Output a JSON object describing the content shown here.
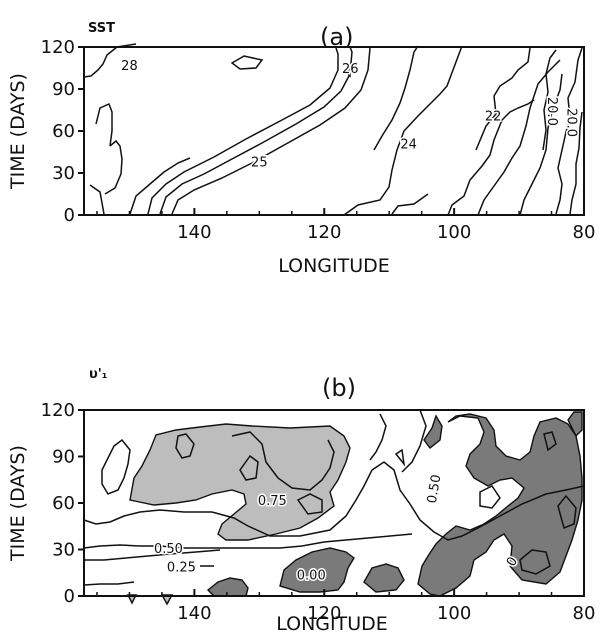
{
  "chart_data": [
    {
      "type": "contour",
      "panel_label": "(a)",
      "variable_label": "SST",
      "xlabel": "LONGITUDE",
      "ylabel": "TIME (DAYS)",
      "x_ticks": [
        140,
        120,
        100,
        80
      ],
      "y_ticks": [
        0,
        30,
        60,
        90,
        120
      ],
      "xlim": [
        157,
        80
      ],
      "ylim": [
        0,
        120
      ],
      "contour_labels": [
        {
          "text": "28",
          "lon": 150,
          "day": 106
        },
        {
          "text": "26",
          "lon": 116,
          "day": 104
        },
        {
          "text": "25",
          "lon": 130,
          "day": 37
        },
        {
          "text": "24",
          "lon": 107,
          "day": 50
        },
        {
          "text": "22",
          "lon": 94,
          "day": 70
        },
        {
          "text": "20.0",
          "lon": 85,
          "day": 74
        },
        {
          "text": "20.0",
          "lon": 82,
          "day": 66
        }
      ]
    },
    {
      "type": "contour",
      "panel_label": "(b)",
      "variable_label": "υ'₁",
      "xlabel": "LONGITUDE",
      "ylabel": "TIME (DAYS)",
      "x_ticks": [
        140,
        120,
        100,
        80
      ],
      "y_ticks": [
        0,
        30,
        60,
        90,
        120
      ],
      "xlim": [
        157,
        80
      ],
      "ylim": [
        0,
        120
      ],
      "contour_labels": [
        {
          "text": "0.75",
          "lon": 128,
          "day": 61
        },
        {
          "text": "0.50",
          "lon": 103,
          "day": 69
        },
        {
          "text": "0.50",
          "lon": 144,
          "day": 30
        },
        {
          "text": "0.25",
          "lon": 142,
          "day": 18
        },
        {
          "text": "0.00",
          "lon": 122,
          "day": 13
        },
        {
          "text": "0",
          "lon": 91,
          "day": 22
        }
      ]
    }
  ]
}
